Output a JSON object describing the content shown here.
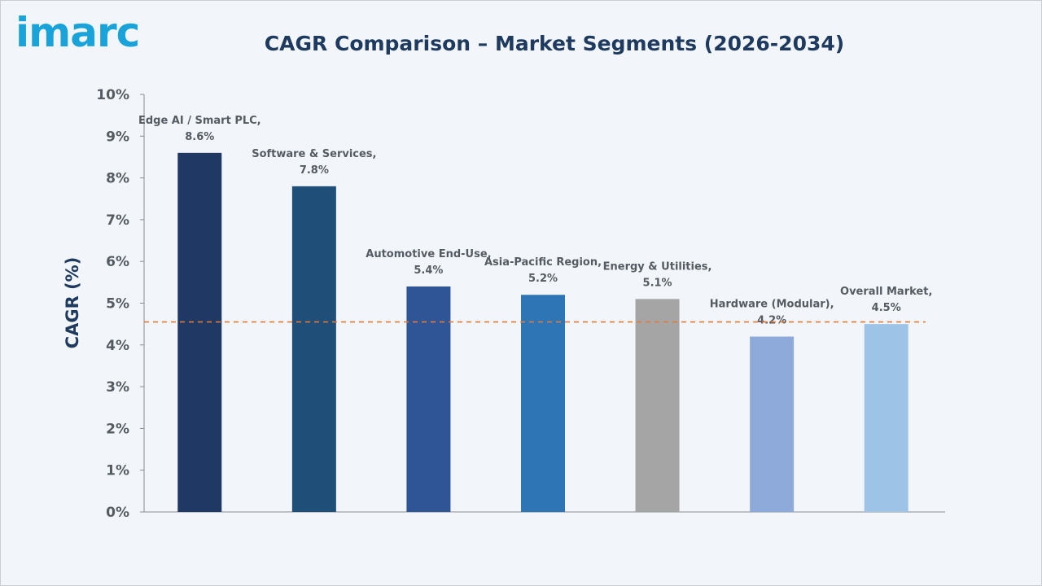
{
  "logo": "imarc",
  "chart_data": {
    "type": "bar",
    "title": "CAGR Comparison – Market Segments (2026-2034)",
    "ylabel": "CAGR (%)",
    "xlabel": "",
    "ylim": [
      0,
      10
    ],
    "yticks": [
      "0%",
      "1%",
      "2%",
      "3%",
      "4%",
      "5%",
      "6%",
      "7%",
      "8%",
      "9%",
      "10%"
    ],
    "categories": [
      "Edge AI / Smart PLC",
      "Software & Services",
      "Automotive End-Use",
      "Asia-Pacific Region",
      "Energy & Utilities",
      "Hardware (Modular)",
      "Overall Market"
    ],
    "values": [
      8.6,
      7.8,
      5.4,
      5.2,
      5.1,
      4.2,
      4.5
    ],
    "data_labels": [
      [
        "Edge AI / Smart PLC,",
        "8.6%"
      ],
      [
        "Software & Services,",
        "7.8%"
      ],
      [
        "Automotive End-Use,",
        "5.4%"
      ],
      [
        "Asia-Pacific Region,",
        "5.2%"
      ],
      [
        "Energy & Utilities,",
        "5.1%"
      ],
      [
        "Hardware (Modular),",
        "4.2%"
      ],
      [
        "Overall Market,",
        "4.5%"
      ]
    ],
    "colors": [
      "#1f3864",
      "#1f4e79",
      "#2f5597",
      "#2e75b6",
      "#a5a5a5",
      "#8eaadb",
      "#9dc3e6"
    ],
    "reference_line": {
      "value": 4.55,
      "color": "#e07b39",
      "style": "dashed"
    },
    "grid": false,
    "legend": "none"
  }
}
